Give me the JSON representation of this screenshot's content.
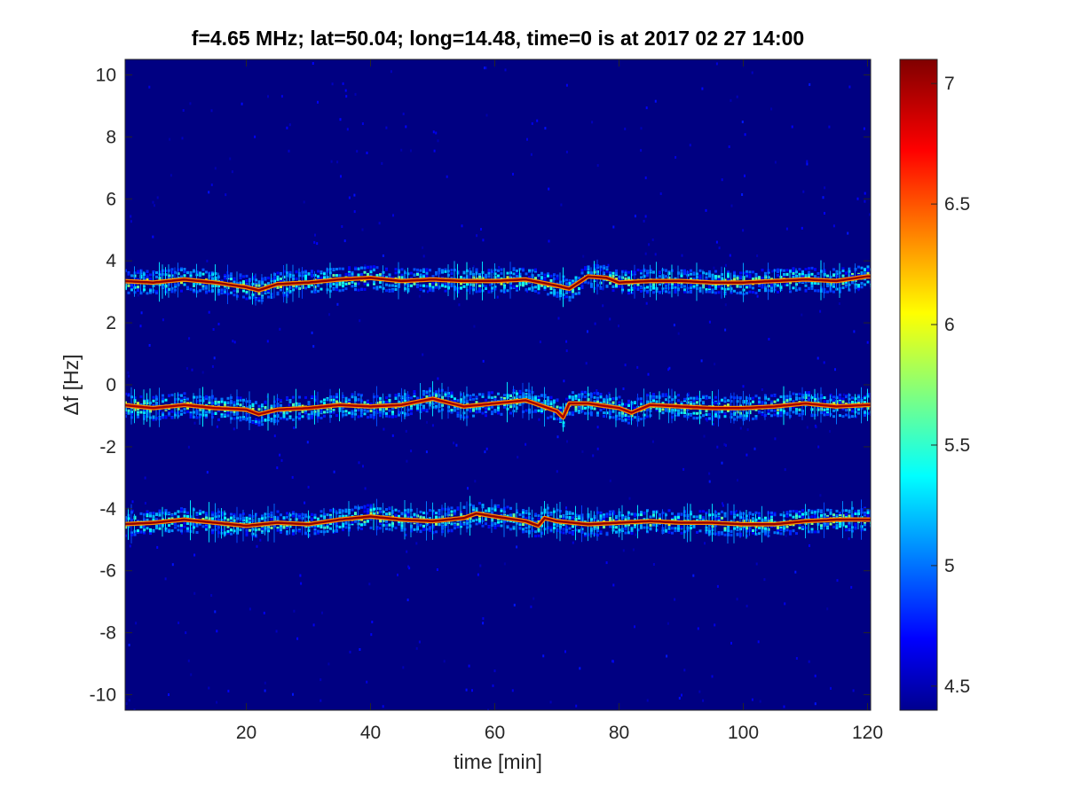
{
  "chart_data": {
    "type": "heatmap",
    "title": "f=4.65 MHz;  lat=50.04; long=14.48, time=0 is at 2017 02 27 14:00",
    "xlabel": "time [min]",
    "ylabel": "Δf [Hz]",
    "xlim": [
      0.5,
      120.5
    ],
    "ylim": [
      -10.5,
      10.5
    ],
    "xticks": [
      20,
      40,
      60,
      80,
      100,
      120
    ],
    "yticks": [
      -10,
      -8,
      -6,
      -4,
      -2,
      0,
      2,
      4,
      6,
      8,
      10
    ],
    "colorbar": {
      "clim": [
        4.4,
        7.1
      ],
      "ticks": [
        4.5,
        5,
        5.5,
        6,
        6.5,
        7
      ],
      "colormap": "jet"
    },
    "background_level": 4.45,
    "traces": [
      {
        "t": [
          0,
          5,
          10,
          15,
          20,
          22,
          25,
          30,
          35,
          40,
          45,
          50,
          55,
          60,
          65,
          70,
          72,
          75,
          78,
          80,
          85,
          90,
          95,
          100,
          105,
          110,
          115,
          120
        ],
        "df": [
          3.35,
          3.3,
          3.4,
          3.3,
          3.15,
          3.05,
          3.25,
          3.3,
          3.4,
          3.45,
          3.35,
          3.4,
          3.35,
          3.35,
          3.4,
          3.2,
          3.1,
          3.5,
          3.45,
          3.3,
          3.35,
          3.35,
          3.3,
          3.3,
          3.35,
          3.4,
          3.35,
          3.5
        ],
        "peak": 7.05
      },
      {
        "t": [
          0,
          5,
          10,
          15,
          20,
          22,
          25,
          30,
          35,
          40,
          45,
          50,
          55,
          60,
          65,
          70,
          71,
          72,
          75,
          80,
          82,
          85,
          90,
          95,
          100,
          105,
          110,
          115,
          120
        ],
        "df": [
          -0.65,
          -0.75,
          -0.65,
          -0.75,
          -0.8,
          -0.95,
          -0.8,
          -0.75,
          -0.65,
          -0.7,
          -0.65,
          -0.45,
          -0.7,
          -0.6,
          -0.5,
          -0.85,
          -1.05,
          -0.6,
          -0.6,
          -0.75,
          -0.9,
          -0.65,
          -0.7,
          -0.75,
          -0.75,
          -0.7,
          -0.6,
          -0.7,
          -0.65
        ],
        "peak": 7.0
      },
      {
        "t": [
          0,
          5,
          10,
          15,
          20,
          25,
          30,
          35,
          40,
          45,
          50,
          55,
          57,
          60,
          65,
          67,
          68,
          70,
          75,
          80,
          85,
          90,
          95,
          100,
          105,
          110,
          115,
          120
        ],
        "df": [
          -4.5,
          -4.45,
          -4.35,
          -4.45,
          -4.55,
          -4.45,
          -4.5,
          -4.35,
          -4.25,
          -4.35,
          -4.4,
          -4.3,
          -4.15,
          -4.25,
          -4.4,
          -4.55,
          -4.3,
          -4.4,
          -4.5,
          -4.45,
          -4.4,
          -4.45,
          -4.45,
          -4.5,
          -4.5,
          -4.4,
          -4.35,
          -4.35
        ],
        "peak": 7.05
      }
    ]
  }
}
